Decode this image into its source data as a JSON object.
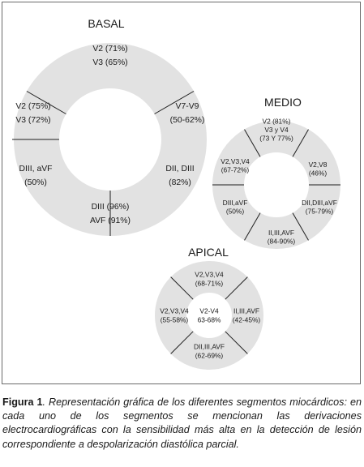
{
  "caption": {
    "figure_label": "Figura 1",
    "text": ". Representación gráfica de los diferentes segmentos miocárdicos: en cada uno de los segmentos se mencionan las derivaciones electrocardiográficas con la sensibilidad más alta en la detección de lesión correspondiente a despolarización diastólica parcial."
  },
  "rings": [
    {
      "id": "basal",
      "title": "BASAL",
      "segments": [
        {
          "id": "top",
          "lines": [
            "V2 (71%)",
            "V3 (65%)"
          ]
        },
        {
          "id": "upper-left",
          "lines": [
            "V2 (75%)",
            "V3 (72%)"
          ]
        },
        {
          "id": "upper-right",
          "lines": [
            "V7-V9",
            "(50-62%)"
          ]
        },
        {
          "id": "lower-left",
          "lines": [
            "DIII, aVF",
            "(50%)"
          ]
        },
        {
          "id": "lower-right",
          "lines": [
            "DII, DIII",
            "(82%)"
          ]
        },
        {
          "id": "bottom",
          "lines": [
            "DIII (96%)",
            "AVF (91%)"
          ]
        }
      ]
    },
    {
      "id": "medio",
      "title": "MEDIO",
      "segments": [
        {
          "id": "top",
          "lines": [
            "V2 (81%)",
            "V3 y V4",
            "(73 Y 77%)"
          ]
        },
        {
          "id": "upper-left",
          "lines": [
            "V2,V3,V4",
            "(67-72%)"
          ]
        },
        {
          "id": "upper-right",
          "lines": [
            "V2,V8",
            "(46%)"
          ]
        },
        {
          "id": "lower-left",
          "lines": [
            "DIII,aVF",
            "(50%)"
          ]
        },
        {
          "id": "lower-right",
          "lines": [
            "DII,DIII,aVF",
            "(75-79%)"
          ]
        },
        {
          "id": "bottom",
          "lines": [
            "II,III,AVF",
            "(84-90%)"
          ]
        }
      ]
    },
    {
      "id": "apical",
      "title": "APICAL",
      "segments": [
        {
          "id": "top",
          "lines": [
            "V2,V3,V4",
            "(68-71%)"
          ]
        },
        {
          "id": "left",
          "lines": [
            "V2,V3,V4",
            "(55-58%)"
          ]
        },
        {
          "id": "center",
          "lines": [
            "V2-V4",
            "63-68%"
          ]
        },
        {
          "id": "right",
          "lines": [
            "II,III,AVF",
            "(42-45%)"
          ]
        },
        {
          "id": "bottom",
          "lines": [
            "DII,III,AVF",
            "(62-69%)"
          ]
        }
      ]
    }
  ],
  "colors": {
    "ring_fill": "#e2e2e2",
    "divider": "#1f1f1f",
    "text": "#1a1a1a",
    "frame": "#6b6b6b",
    "hole": "#ffffff"
  }
}
